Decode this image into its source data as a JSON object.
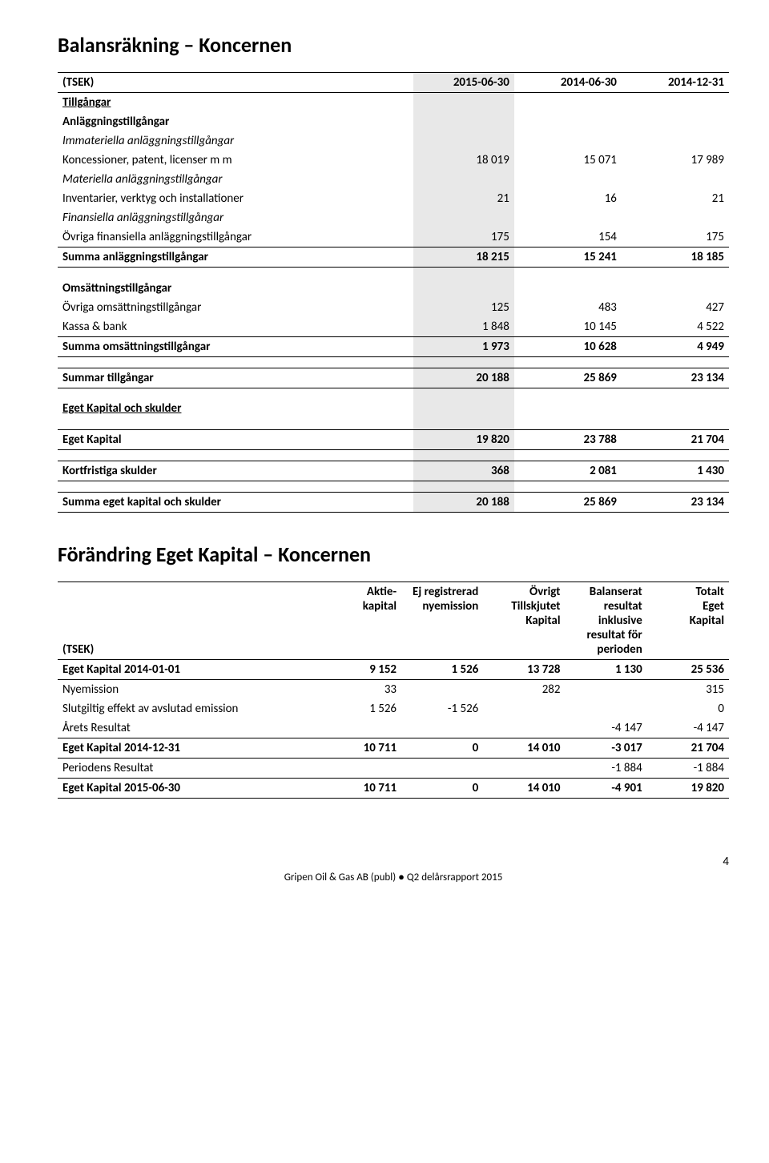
{
  "title1": "Balansräkning – Koncernen",
  "t1": {
    "headers": {
      "label": "(TSEK)",
      "c1": "2015-06-30",
      "c2": "2014-06-30",
      "c3": "2014-12-31"
    },
    "section_assets": "Tillgångar",
    "section_fixed": "Anläggningstillgångar",
    "section_intangible": "Immateriella anläggningstillgångar",
    "row_concessions": {
      "label": "Koncessioner, patent, licenser m m",
      "c1": "18 019",
      "c2": "15 071",
      "c3": "17 989"
    },
    "section_tangible": "Materiella anläggningstillgångar",
    "row_inventory": {
      "label": "Inventarier, verktyg och installationer",
      "c1": "21",
      "c2": "16",
      "c3": "21"
    },
    "section_financial": "Finansiella anläggningstillgångar",
    "row_otherfin": {
      "label": "Övriga finansiella anläggningstillgångar",
      "c1": "175",
      "c2": "154",
      "c3": "175"
    },
    "row_sumfixed": {
      "label": "Summa anläggningstillgångar",
      "c1": "18 215",
      "c2": "15 241",
      "c3": "18 185"
    },
    "section_current": "Omsättningstillgångar",
    "row_othercurrent": {
      "label": "Övriga omsättningstillgångar",
      "c1": "125",
      "c2": "483",
      "c3": "427"
    },
    "row_cash": {
      "label": "Kassa & bank",
      "c1": "1 848",
      "c2": "10 145",
      "c3": "4 522"
    },
    "row_sumcurrent": {
      "label": "Summa omsättningstillgångar",
      "c1": "1 973",
      "c2": "10 628",
      "c3": "4 949"
    },
    "row_sumassets": {
      "label": "Summar tillgångar",
      "c1": "20 188",
      "c2": "25 869",
      "c3": "23 134"
    },
    "section_equity_liab": "Eget Kapital och skulder",
    "row_equity": {
      "label": "Eget Kapital",
      "c1": "19 820",
      "c2": "23 788",
      "c3": "21 704"
    },
    "row_shortliab": {
      "label": "Kortfristiga skulder",
      "c1": "368",
      "c2": "2 081",
      "c3": "1 430"
    },
    "row_sumequity": {
      "label": "Summa eget kapital och skulder",
      "c1": "20 188",
      "c2": "25 869",
      "c3": "23 134"
    }
  },
  "title2": "Förändring Eget Kapital – Koncernen",
  "t2": {
    "h_label": "(TSEK)",
    "h_c1": "Aktie-\nkapital",
    "h_c2": "Ej registrerad\nnyemission",
    "h_c3": "Övrigt\nTillskjutet\nKapital",
    "h_c4": "Balanserat\nresultat\ninklusive\nresultat för\nperioden",
    "h_c5": "Totalt\nEget\nKapital",
    "r1": {
      "label": "Eget Kapital 2014-01-01",
      "c1": "9 152",
      "c2": "1 526",
      "c3": "13 728",
      "c4": "1 130",
      "c5": "25 536"
    },
    "r2": {
      "label": "Nyemission",
      "c1": "33",
      "c2": "",
      "c3": "282",
      "c4": "",
      "c5": "315"
    },
    "r3": {
      "label": "Slutgiltig effekt av avslutad emission",
      "c1": "1 526",
      "c2": "-1 526",
      "c3": "",
      "c4": "",
      "c5": "0"
    },
    "r4": {
      "label": "Årets Resultat",
      "c1": "",
      "c2": "",
      "c3": "",
      "c4": "-4 147",
      "c5": "-4 147"
    },
    "r5": {
      "label": "Eget Kapital 2014-12-31",
      "c1": "10 711",
      "c2": "0",
      "c3": "14 010",
      "c4": "-3 017",
      "c5": "21 704"
    },
    "r6": {
      "label": "Periodens Resultat",
      "c1": "",
      "c2": "",
      "c3": "",
      "c4": "-1 884",
      "c5": "-1 884"
    },
    "r7": {
      "label": "Eget Kapital 2015-06-30",
      "c1": "10 711",
      "c2": "0",
      "c3": "14 010",
      "c4": "-4 901",
      "c5": "19 820"
    }
  },
  "footer": {
    "company": "Gripen Oil & Gas AB (publ)",
    "bullet": "●",
    "doc": "Q2 delårsrapport 2015",
    "page": "4"
  }
}
